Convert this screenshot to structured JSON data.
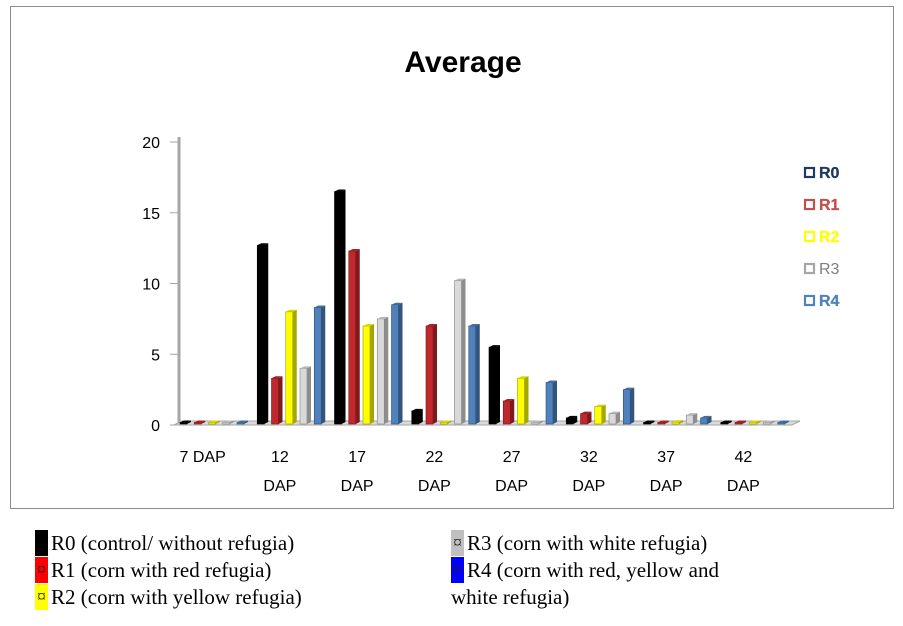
{
  "chart_data": {
    "type": "bar",
    "title": "Average",
    "categories": [
      "7 DAP",
      "12 DAP",
      "17 DAP",
      "22 DAP",
      "27 DAP",
      "32 DAP",
      "37 DAP",
      "42 DAP"
    ],
    "ylim": [
      0,
      20
    ],
    "yticks": [
      0,
      5,
      10,
      15,
      20
    ],
    "series": [
      {
        "name": "R0",
        "color": "#000000",
        "values": [
          0,
          12.7,
          16.5,
          1.0,
          5.5,
          0.5,
          0,
          0
        ]
      },
      {
        "name": "R1",
        "color": "#c0282d",
        "values": [
          0,
          3.3,
          12.3,
          7.0,
          1.7,
          0.8,
          0,
          0
        ]
      },
      {
        "name": "R2",
        "color": "#ffff00",
        "values": [
          0,
          8.0,
          7.0,
          0,
          3.3,
          1.3,
          0.2,
          0
        ]
      },
      {
        "name": "R3",
        "color": "#d9d9d9",
        "values": [
          0,
          4.0,
          7.5,
          10.2,
          0,
          0.8,
          0.7,
          0
        ]
      },
      {
        "name": "R4",
        "color": "#4f81bd",
        "values": [
          0,
          8.3,
          8.5,
          7.0,
          3.0,
          2.5,
          0.5,
          0
        ]
      }
    ],
    "legend_position": "right",
    "grid": false,
    "bars_3d": true
  },
  "legend": [
    {
      "label": "R0",
      "text_color": "#1f3864",
      "stroke": "#1f3864"
    },
    {
      "label": "R1",
      "text_color": "#c0504d",
      "stroke": "#c0504d"
    },
    {
      "label": "R2",
      "text_color": "#ffff00",
      "stroke": "#ffff00"
    },
    {
      "label": "R3",
      "text_color": "#7f7f7f",
      "stroke": "#a6a6a6"
    },
    {
      "label": "R4",
      "text_color": "#4f81bd",
      "stroke": "#4f81bd"
    }
  ],
  "caption": {
    "r0": {
      "text": "R0 (control/ without refugia)",
      "swatch": "#000000",
      "glyph": ""
    },
    "r1": {
      "text": "R1 (corn with red refugia)",
      "swatch": "#ff0000",
      "glyph": "¤"
    },
    "r2": {
      "text": "R2 (corn with yellow refugia)",
      "swatch": "#ffff00",
      "glyph": "¤"
    },
    "r3": {
      "text": "R3 (corn with white refugia)",
      "swatch": "#c0c0c0",
      "glyph": "¤"
    },
    "r4_line1": {
      "text": "R4 (corn with red, yellow and",
      "swatch": "#0000ff",
      "glyph": "¤"
    },
    "r4_line2": "white refugia)"
  }
}
